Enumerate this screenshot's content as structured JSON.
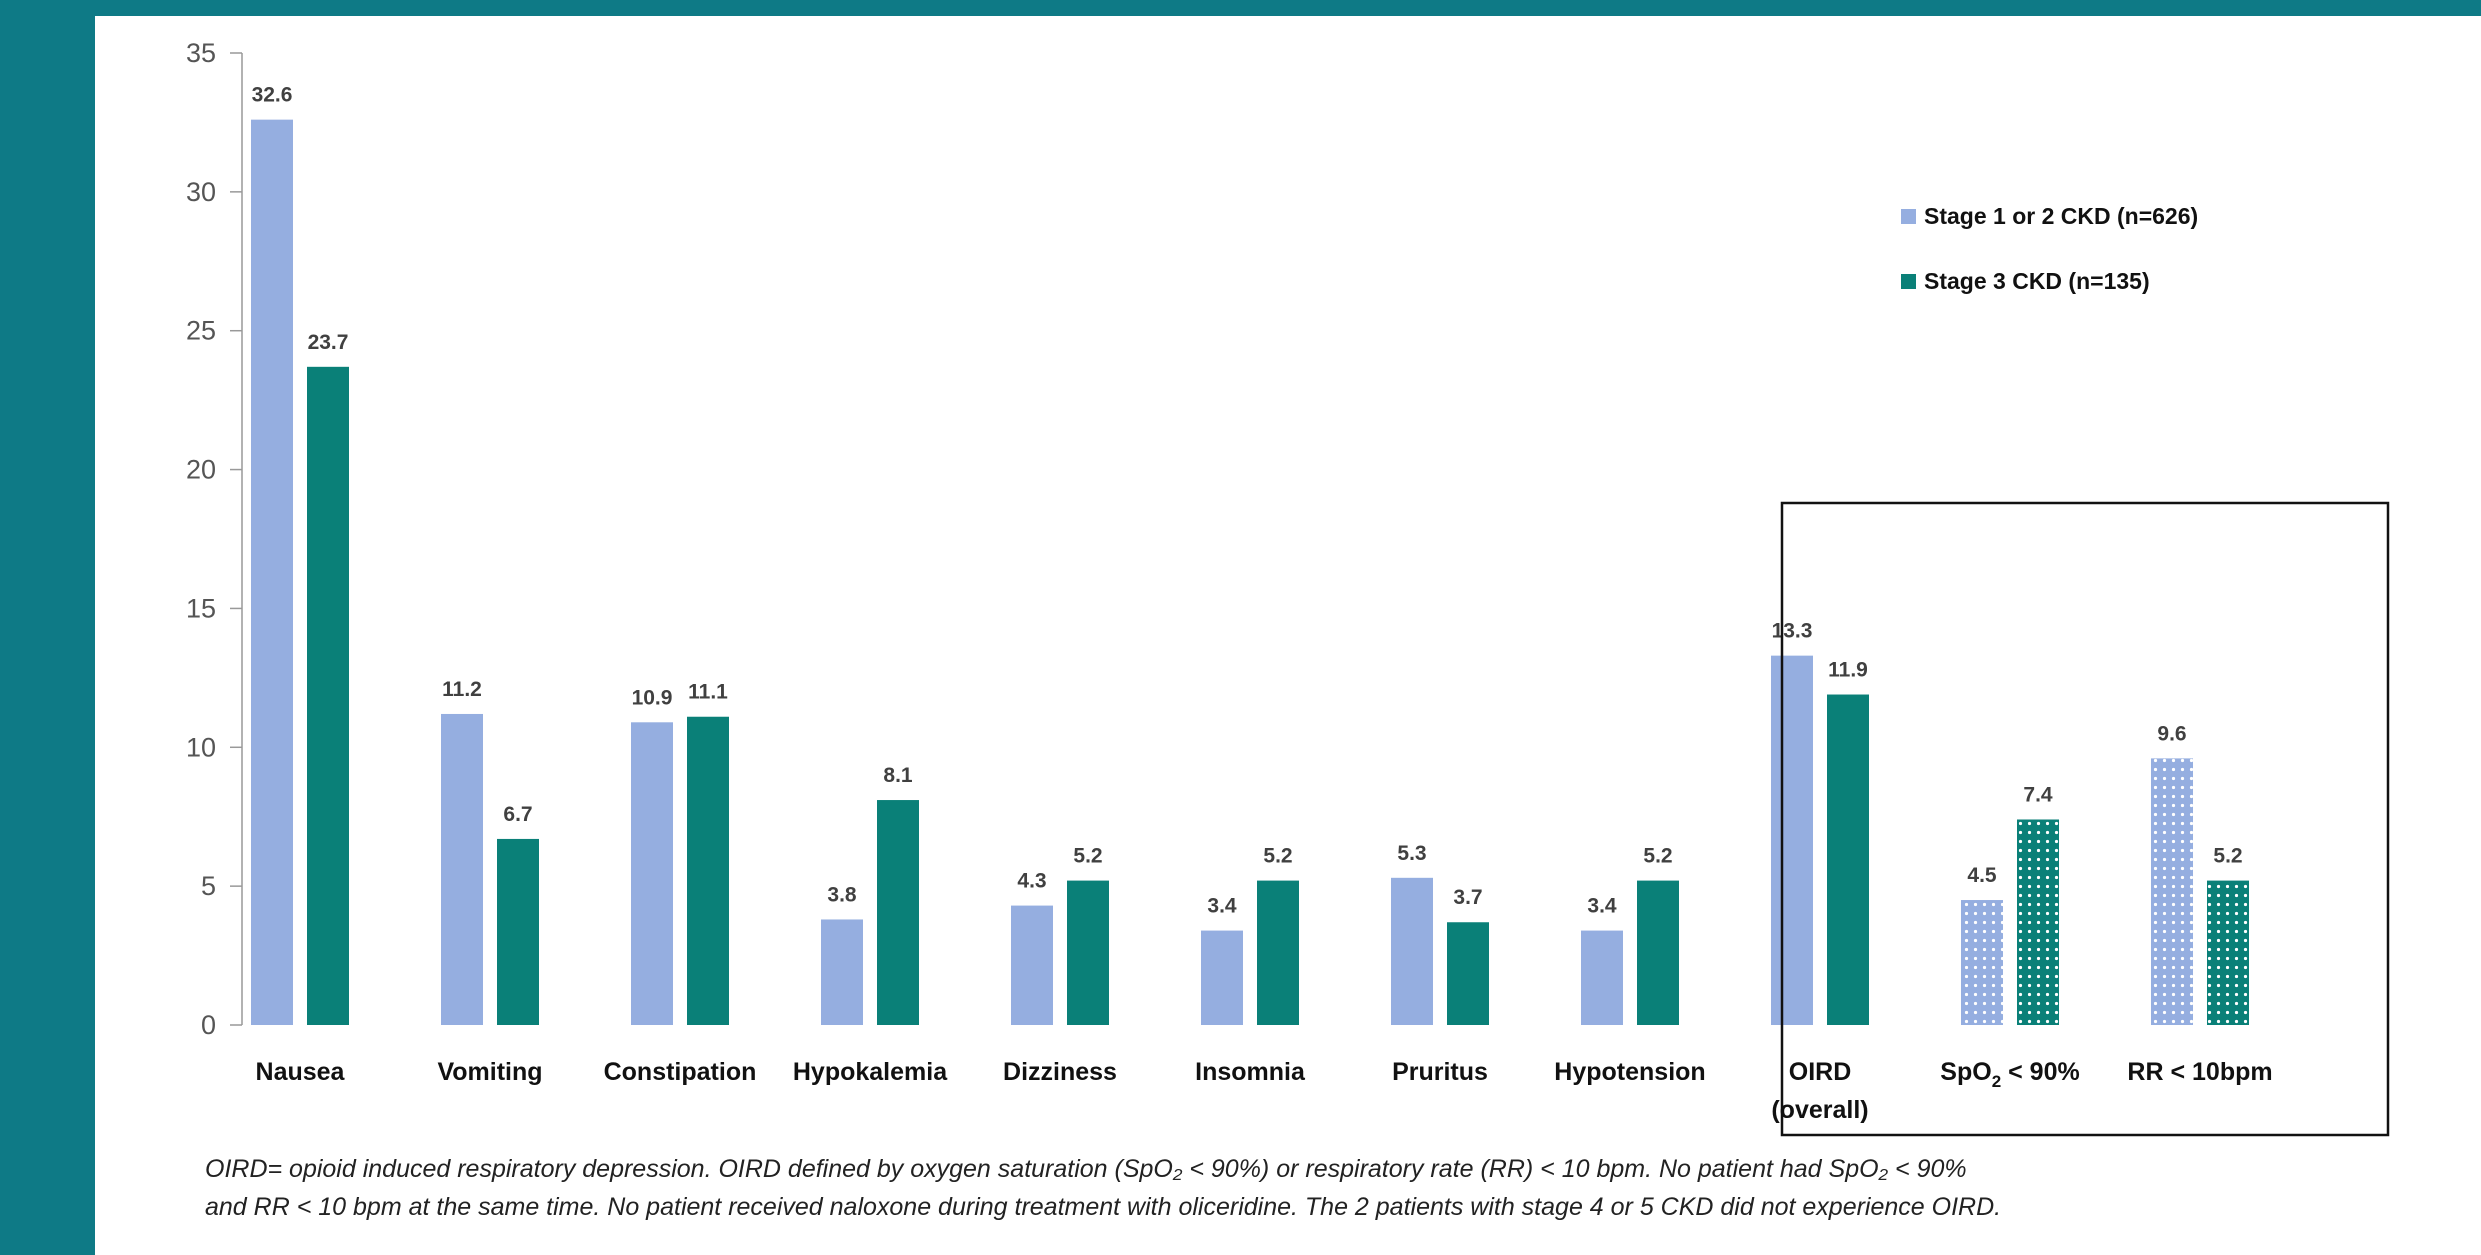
{
  "chart_data": {
    "type": "bar",
    "title": "",
    "xlabel": "",
    "ylabel": "",
    "ylim": [
      0,
      35
    ],
    "yticks": [
      0,
      5,
      10,
      15,
      20,
      25,
      30,
      35
    ],
    "grid": false,
    "legend_position": "top-right",
    "categories": [
      "Nausea",
      "Vomiting",
      "Constipation",
      "Hypokalemia",
      "Dizziness",
      "Insomnia",
      "Pruritus",
      "Hypotension",
      "OIRD (overall)",
      "SpO2 < 90%",
      "RR < 10bpm"
    ],
    "series": [
      {
        "name": "Stage 1 or 2 CKD (n=626)",
        "color": "#95aee0",
        "values": [
          32.6,
          11.2,
          10.9,
          3.8,
          4.3,
          3.4,
          5.3,
          3.4,
          13.3,
          4.5,
          9.6
        ]
      },
      {
        "name": "Stage 3 CKD (n=135)",
        "color": "#0a8078",
        "values": [
          23.7,
          6.7,
          11.1,
          8.1,
          5.2,
          5.2,
          3.7,
          5.2,
          11.9,
          7.4,
          5.2
        ]
      }
    ],
    "annotations": {
      "box_around_categories": [
        "OIRD (overall)",
        "SpO2 < 90%",
        "RR < 10bpm"
      ],
      "dotted_fill_categories": [
        "SpO2 < 90%",
        "RR < 10bpm"
      ]
    }
  },
  "footnote": {
    "line1": "OIRD= opioid induced respiratory depression. OIRD defined by oxygen saturation (SpO₂ < 90%) or respiratory rate (RR) < 10 bpm. No patient had SpO₂ < 90%",
    "line2": "and RR < 10 bpm at the same time. No patient received naloxone  during treatment with oliceridine. The 2 patients with stage 4 or 5 CKD did not experience OIRD."
  }
}
